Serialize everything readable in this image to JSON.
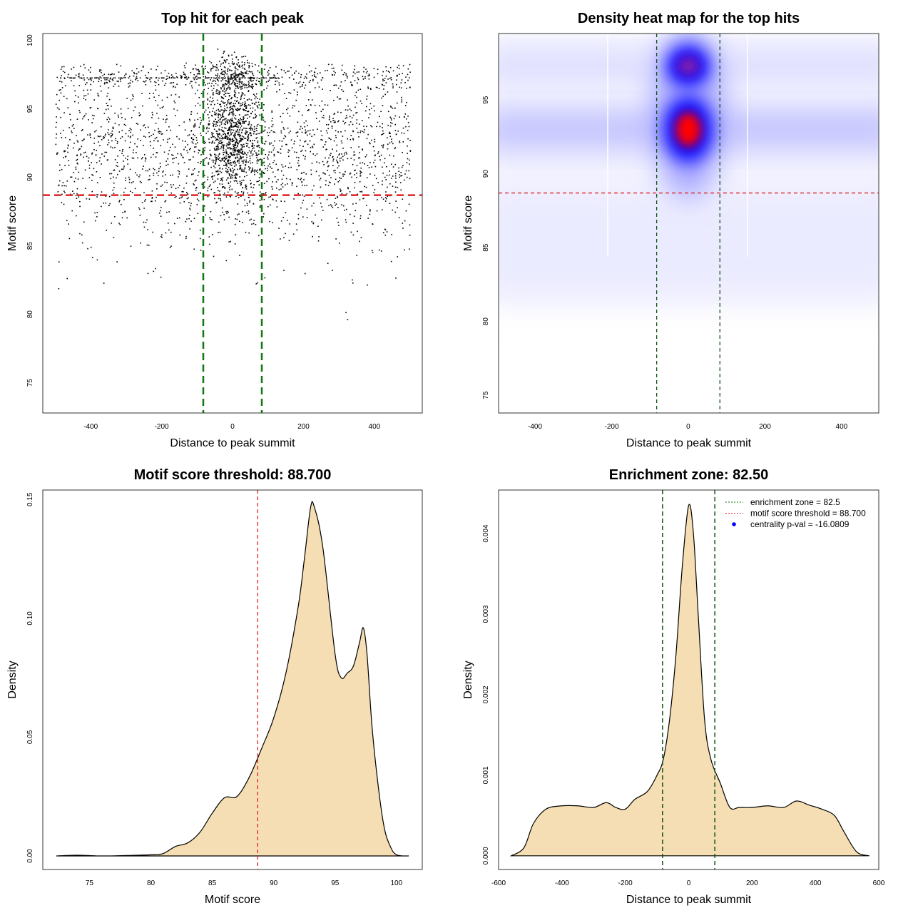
{
  "chart_data": [
    {
      "type": "scatter",
      "title": "Top hit for each peak",
      "xlabel": "Distance to peak summit",
      "ylabel": "Motif score",
      "xlim": [
        -535,
        535
      ],
      "ylim": [
        72.8,
        100.5
      ],
      "xticks": [
        -400,
        -200,
        0,
        200,
        400
      ],
      "yticks": [
        75,
        80,
        85,
        90,
        95,
        100
      ],
      "threshold_y": 88.7,
      "enrichment_zone": [
        -82.5,
        82.5
      ],
      "colors": {
        "points": "#000000",
        "threshold": "#dd2222",
        "zone": "#117711"
      },
      "point_distribution": {
        "n_background": 2300,
        "background_x": [
          -500,
          500
        ],
        "background_y_mean": 92,
        "background_y_sd": 3.5,
        "n_central": 1100,
        "central_x_sd": 40,
        "central_y_mean": 93,
        "central_y_sd": 2.3,
        "dense_score": 97.3
      }
    },
    {
      "type": "heatmap",
      "title": "Density heat map for the top hits",
      "xlabel": "Distance to peak summit",
      "ylabel": "Motif score",
      "xlim": [
        -495,
        497
      ],
      "ylim": [
        73.8,
        99.5
      ],
      "xticks": [
        -400,
        -200,
        0,
        200,
        400
      ],
      "yticks": [
        75,
        80,
        85,
        90,
        95
      ],
      "threshold_y": 88.7,
      "enrichment_zone": [
        -82.5,
        82.5
      ],
      "peaks": [
        {
          "x": 0,
          "y": 93,
          "intensity": 1.0
        },
        {
          "x": 0,
          "y": 97.3,
          "intensity": 0.75
        }
      ],
      "bands_y": [
        93,
        97.3
      ],
      "colors": {
        "low": "#ffffff",
        "mid": "#0000ff",
        "high": "#ff0000",
        "threshold": "#dd2222",
        "zone": "#115511"
      }
    },
    {
      "type": "area",
      "title": "Motif score threshold: 88.700",
      "xlabel": "Motif score",
      "ylabel": "Density",
      "xlim": [
        71.2,
        102.1
      ],
      "ylim": [
        -0.0057,
        0.154
      ],
      "xticks": [
        75,
        80,
        85,
        90,
        95,
        100
      ],
      "yticks": [
        0.0,
        0.05,
        0.1,
        0.15
      ],
      "ytick_labels": [
        "0.00",
        "0.05",
        "0.10",
        "0.15"
      ],
      "threshold_x": 88.7,
      "colors": {
        "fill": "#f5deb3",
        "threshold": "#dd2222"
      },
      "x": [
        72.3,
        74,
        76,
        78,
        80,
        81,
        82,
        83,
        84,
        85,
        86,
        87,
        88,
        89,
        90,
        91,
        92,
        92.5,
        93,
        93.3,
        94,
        95,
        95.5,
        96,
        96.5,
        97,
        97.3,
        97.6,
        98,
        98.5,
        99,
        99.5,
        100,
        101
      ],
      "y": [
        0,
        0.0003,
        0,
        0.0002,
        0.0005,
        0.001,
        0.004,
        0.0055,
        0.01,
        0.018,
        0.0245,
        0.025,
        0.033,
        0.045,
        0.058,
        0.077,
        0.105,
        0.125,
        0.1465,
        0.147,
        0.13,
        0.085,
        0.075,
        0.077,
        0.08,
        0.09,
        0.096,
        0.085,
        0.055,
        0.03,
        0.012,
        0.004,
        0.0005,
        0
      ]
    },
    {
      "type": "area",
      "title": "Enrichment zone: 82.50",
      "xlabel": "Distance to peak summit",
      "ylabel": "Density",
      "xlim": [
        -600,
        600
      ],
      "ylim": [
        -0.00017,
        0.00454
      ],
      "xticks": [
        -600,
        -400,
        -200,
        0,
        200,
        400,
        600
      ],
      "yticks": [
        0,
        0.001,
        0.002,
        0.003,
        0.004
      ],
      "ytick_labels": [
        "0.000",
        "0.001",
        "0.002",
        "0.003",
        "0.004"
      ],
      "enrichment_zone": [
        -82.5,
        82.5
      ],
      "colors": {
        "fill": "#f5deb3",
        "zone": "#115511"
      },
      "legend": {
        "position": "top-right",
        "entries": [
          {
            "label": "enrichment zone = 82.5",
            "color": "#117711",
            "style": "dotted"
          },
          {
            "label": "motif score threshold = 88.700",
            "color": "#dd2222",
            "style": "dotted"
          },
          {
            "label": "centrality p-val = -16.0809",
            "color": "#0000ff",
            "style": "point"
          }
        ]
      },
      "x": [
        -560,
        -520,
        -490,
        -450,
        -400,
        -350,
        -300,
        -260,
        -230,
        -200,
        -170,
        -130,
        -100,
        -80,
        -60,
        -40,
        -20,
        0,
        15,
        30,
        50,
        70,
        100,
        130,
        160,
        200,
        250,
        300,
        340,
        380,
        420,
        460,
        490,
        530,
        570
      ],
      "y": [
        0,
        0.0001,
        0.0004,
        0.00058,
        0.00062,
        0.00062,
        0.0006,
        0.00066,
        0.0006,
        0.00058,
        0.0007,
        0.0008,
        0.001,
        0.0012,
        0.0017,
        0.0025,
        0.0036,
        0.00435,
        0.004,
        0.003,
        0.0017,
        0.0012,
        0.0009,
        0.0006,
        0.0006,
        0.0006,
        0.00062,
        0.0006,
        0.00068,
        0.00063,
        0.00058,
        0.0005,
        0.0003,
        5e-05,
        0
      ]
    }
  ]
}
